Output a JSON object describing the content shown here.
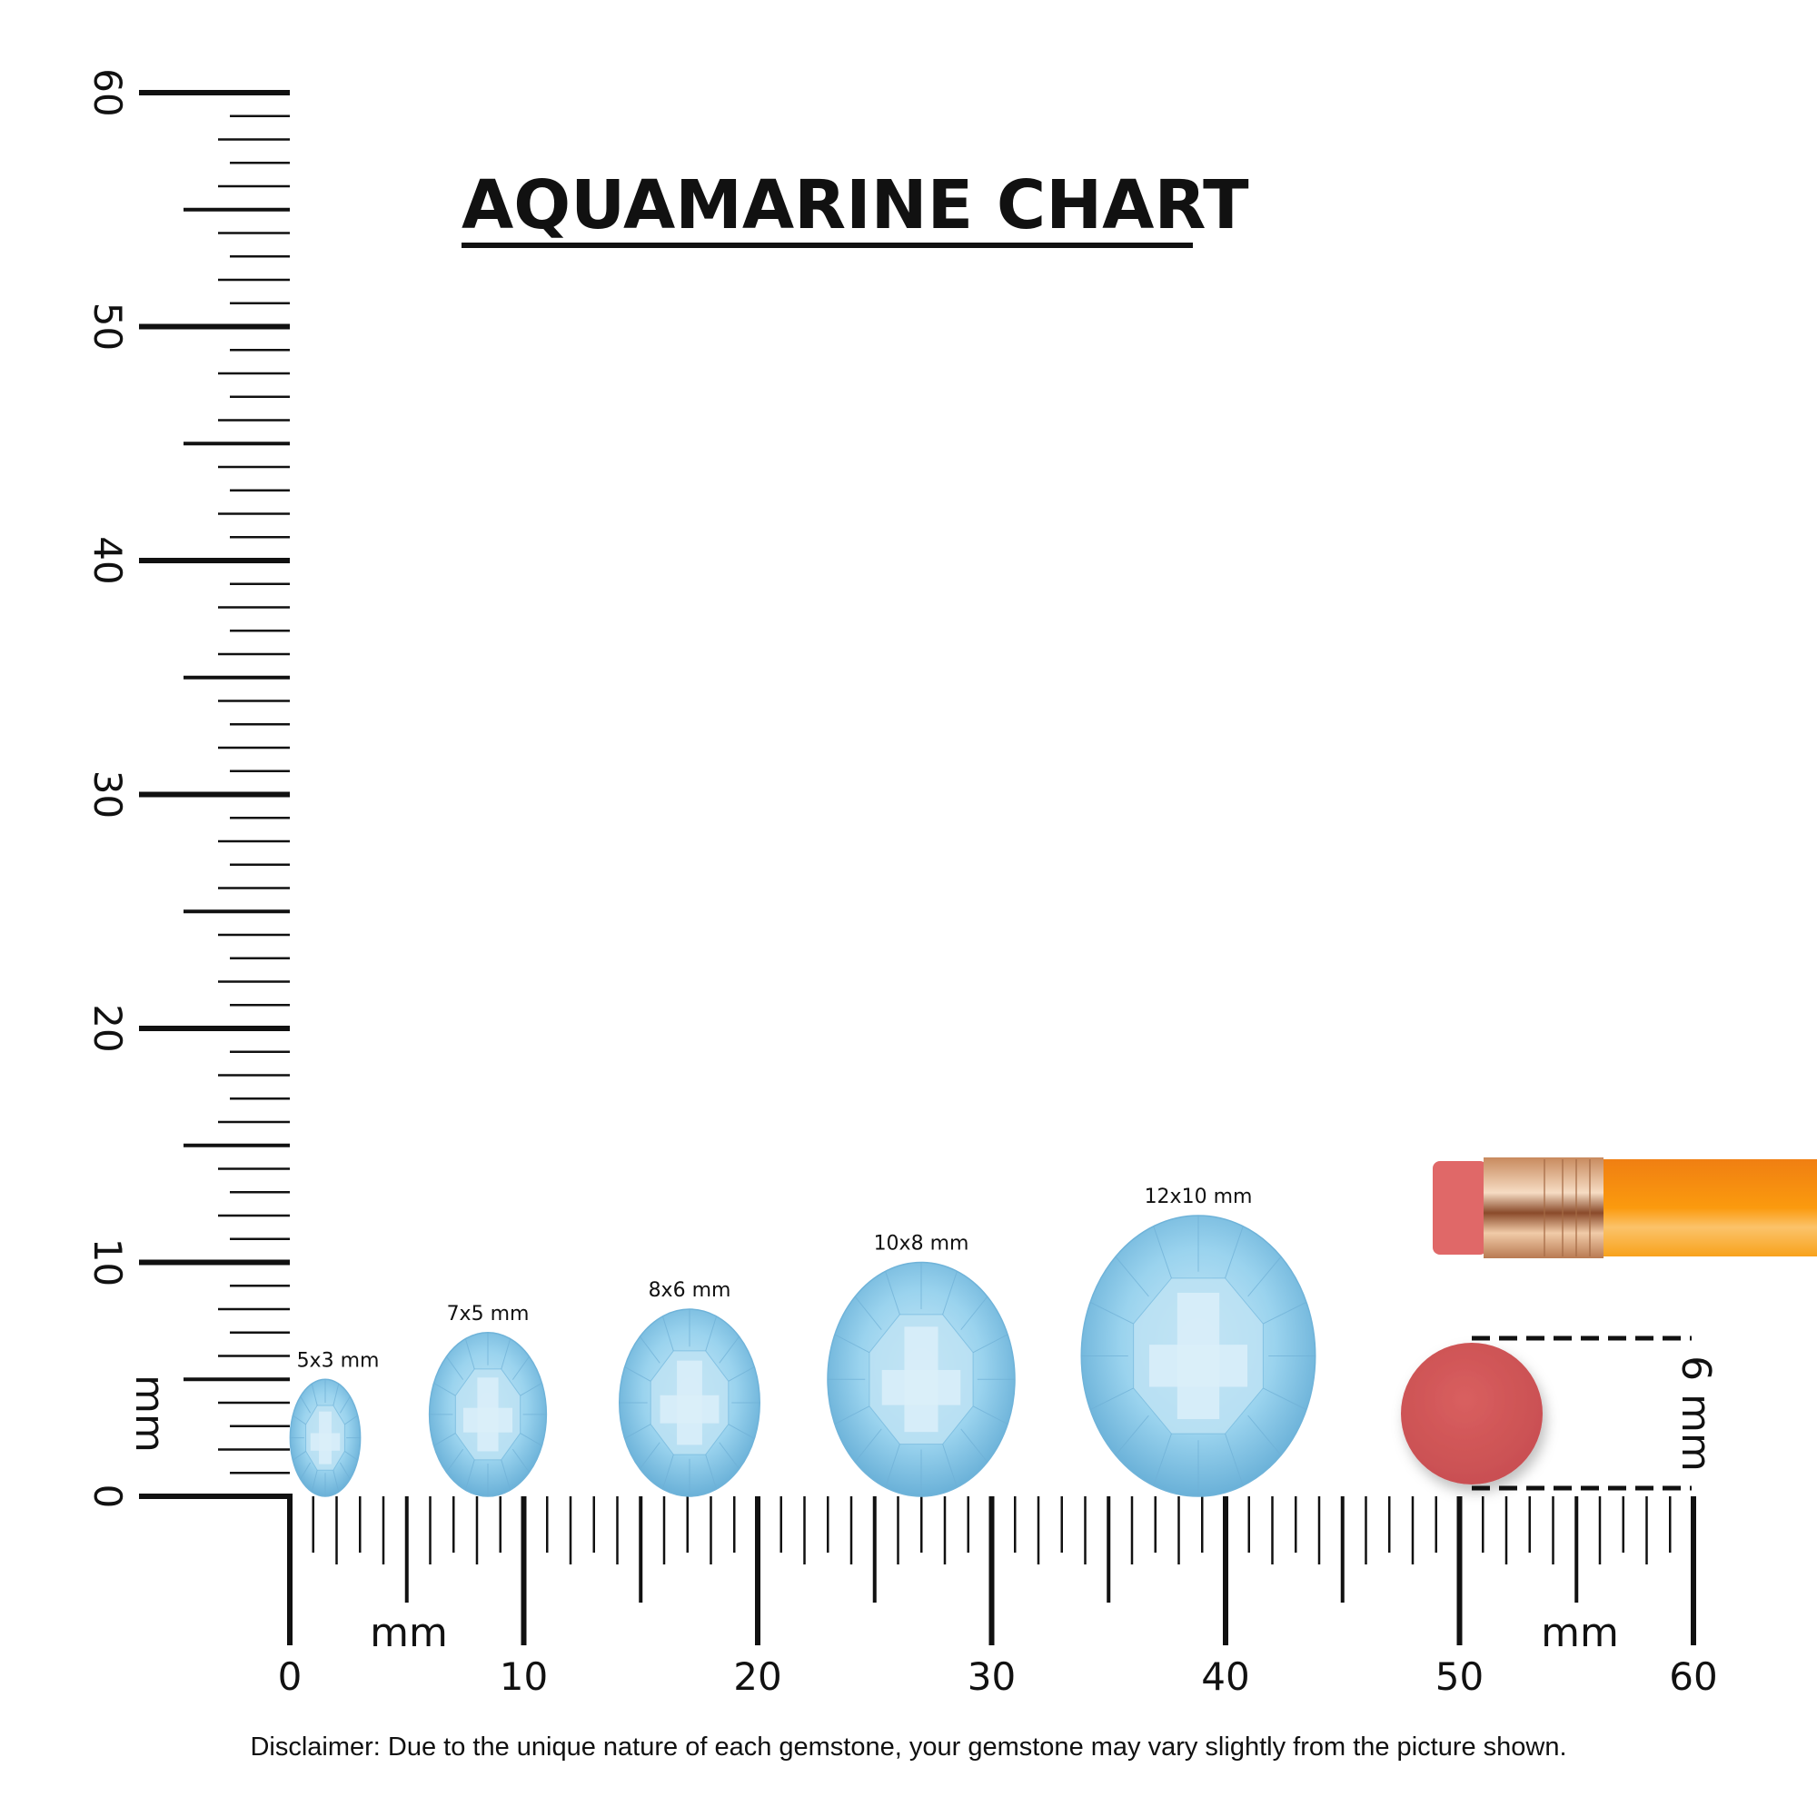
{
  "title": "AQUAMARINE CHART",
  "ruler": {
    "unit_label": "mm",
    "vertical_ticks": [
      "0",
      "10",
      "20",
      "30",
      "40",
      "50",
      "60"
    ],
    "horizontal_ticks": [
      "0",
      "10",
      "20",
      "30",
      "40",
      "50",
      "60"
    ],
    "range_mm": [
      0,
      60
    ]
  },
  "gems": [
    {
      "label": "5x3 mm",
      "length_mm": 5,
      "width_mm": 3
    },
    {
      "label": "7x5 mm",
      "length_mm": 7,
      "width_mm": 5
    },
    {
      "label": "8x6 mm",
      "length_mm": 8,
      "width_mm": 6
    },
    {
      "label": "10x8 mm",
      "length_mm": 10,
      "width_mm": 8
    },
    {
      "label": "12x10 mm",
      "length_mm": 12,
      "width_mm": 10
    }
  ],
  "reference": {
    "eraser_label": "6 mm",
    "eraser_diameter_mm": 6
  },
  "colors": {
    "gem": "#8cc8e6",
    "eraser": "#d45a5a",
    "pencil": "#f7941d",
    "ferrule": "#d9a27a"
  },
  "disclaimer": "Disclaimer: Due to the unique nature of each gemstone, your gemstone may vary slightly from the picture shown."
}
